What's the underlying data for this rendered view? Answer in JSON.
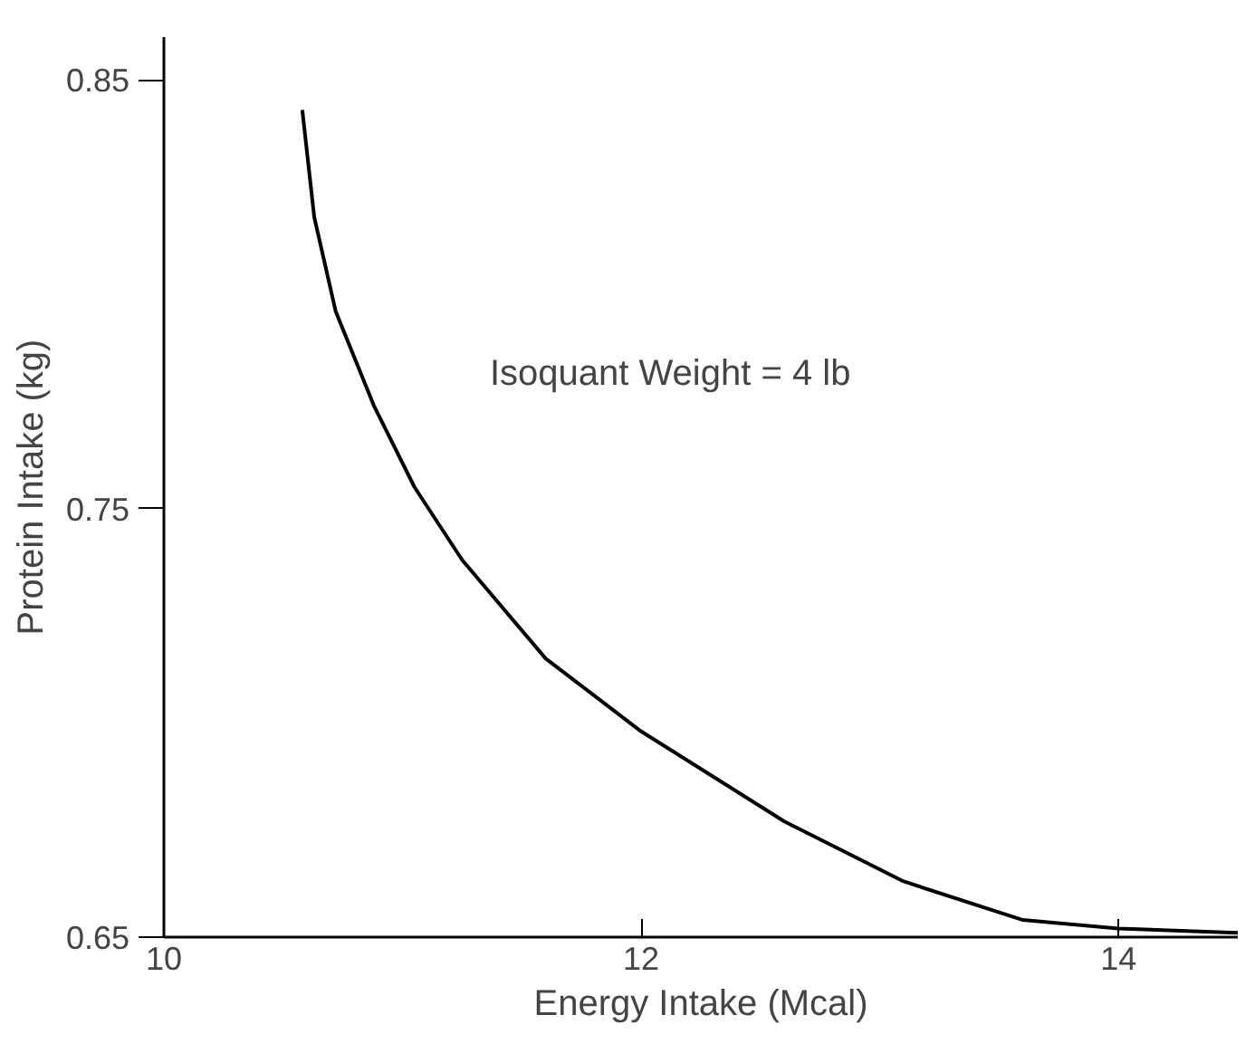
{
  "chart_data": {
    "type": "line",
    "xlabel": "Energy Intake (Mcal)",
    "ylabel": "Protein Intake (kg)",
    "annotations": [
      "Isoquant Weight = 4 lb"
    ],
    "x": [
      10.58,
      10.63,
      10.72,
      10.88,
      11.05,
      11.25,
      11.6,
      12.0,
      12.6,
      13.1,
      13.6,
      14.0,
      14.5
    ],
    "series": [
      {
        "color": "#000000",
        "values": [
          0.843,
          0.818,
          0.796,
          0.774,
          0.755,
          0.738,
          0.715,
          0.698,
          0.677,
          0.663,
          0.654,
          0.652,
          0.651
        ]
      }
    ],
    "xlim": [
      10,
      14.5
    ],
    "ylim": [
      0.65,
      0.86
    ],
    "xticks": [
      10,
      12,
      14
    ],
    "yticks": [
      0.65,
      0.75,
      0.85
    ],
    "grid": false,
    "marker": "none",
    "line_style": "solid"
  }
}
